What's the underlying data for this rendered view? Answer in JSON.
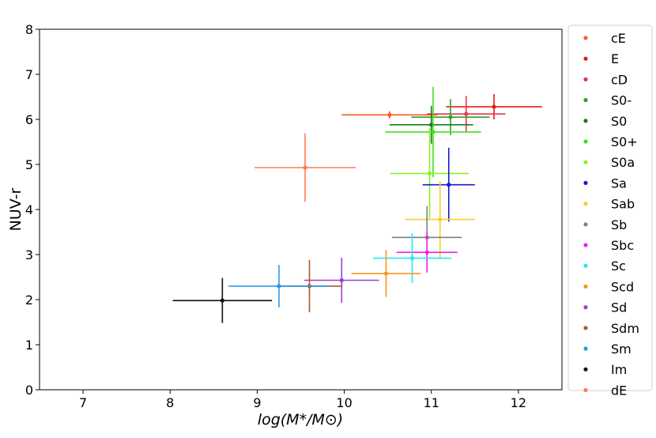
{
  "chart_data": {
    "type": "scatter",
    "xlabel": "log(M*/M⊙)",
    "ylabel": "NUV-r",
    "xlim": [
      6.5,
      12.5
    ],
    "ylim": [
      0,
      8
    ],
    "x_ticks": [
      "7",
      "8",
      "9",
      "10",
      "11",
      "12"
    ],
    "y_ticks": [
      "0",
      "1",
      "2",
      "3",
      "4",
      "5",
      "6",
      "7",
      "8"
    ],
    "grid": false,
    "legend_position": "outside-right",
    "series": [
      {
        "name": "cE",
        "color": "#ff5a1f",
        "x": 10.52,
        "y": 6.1,
        "xerr": 0.55,
        "yerr": 0.08
      },
      {
        "name": "E",
        "color": "#e31a1c",
        "x": 11.72,
        "y": 6.28,
        "xerr": 0.55,
        "yerr": 0.28
      },
      {
        "name": "cD",
        "color": "#e8364f",
        "x": 11.4,
        "y": 6.12,
        "xerr": 0.45,
        "yerr": 0.4
      },
      {
        "name": "S0-",
        "color": "#2ca02c",
        "x": 11.22,
        "y": 6.05,
        "xerr": 0.45,
        "yerr": 0.4
      },
      {
        "name": "S0",
        "color": "#167d16",
        "x": 11.0,
        "y": 5.88,
        "xerr": 0.48,
        "yerr": 0.42
      },
      {
        "name": "S0+",
        "color": "#40e020",
        "x": 11.02,
        "y": 5.72,
        "xerr": 0.55,
        "yerr": 1.0
      },
      {
        "name": "S0a",
        "color": "#8cf020",
        "x": 10.98,
        "y": 4.8,
        "xerr": 0.45,
        "yerr": 1.0
      },
      {
        "name": "Sa",
        "color": "#1a1ad0",
        "x": 11.2,
        "y": 4.55,
        "xerr": 0.3,
        "yerr": 0.82
      },
      {
        "name": "Sab",
        "color": "#f6d02a",
        "x": 11.1,
        "y": 3.78,
        "xerr": 0.4,
        "yerr": 0.85
      },
      {
        "name": "Sb",
        "color": "#808080",
        "x": 10.95,
        "y": 3.38,
        "xerr": 0.4,
        "yerr": 0.7
      },
      {
        "name": "Sbc",
        "color": "#ee22ee",
        "x": 10.95,
        "y": 3.05,
        "xerr": 0.35,
        "yerr": 0.45
      },
      {
        "name": "Sc",
        "color": "#22e8f2",
        "x": 10.78,
        "y": 2.92,
        "xerr": 0.45,
        "yerr": 0.55
      },
      {
        "name": "Scd",
        "color": "#f5961e",
        "x": 10.48,
        "y": 2.58,
        "xerr": 0.4,
        "yerr": 0.52
      },
      {
        "name": "Sd",
        "color": "#9a40d0",
        "x": 9.97,
        "y": 2.43,
        "xerr": 0.43,
        "yerr": 0.5
      },
      {
        "name": "Sdm",
        "color": "#a85a2a",
        "x": 9.6,
        "y": 2.3,
        "xerr": 0.38,
        "yerr": 0.58
      },
      {
        "name": "Sm",
        "color": "#2a9ae8",
        "x": 9.25,
        "y": 2.3,
        "xerr": 0.58,
        "yerr": 0.47
      },
      {
        "name": "Im",
        "color": "#111111",
        "x": 8.6,
        "y": 1.98,
        "xerr": 0.57,
        "yerr": 0.5
      },
      {
        "name": "dE",
        "color": "#ff7a52",
        "x": 9.55,
        "y": 4.93,
        "xerr": 0.58,
        "yerr": 0.76
      }
    ]
  }
}
